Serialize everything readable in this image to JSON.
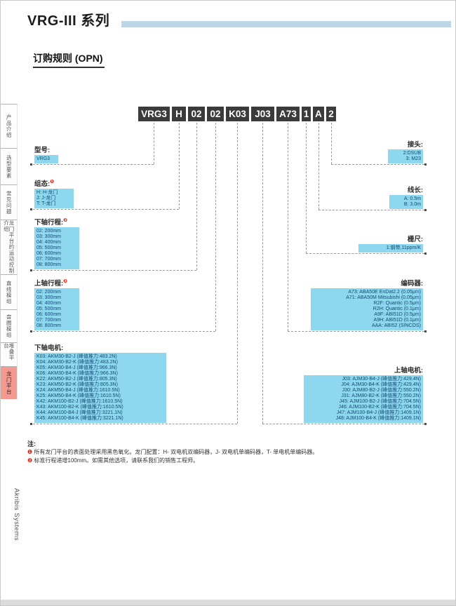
{
  "page": {
    "title": "VRG-III 系列",
    "subtitle": "订购规则 (OPN)",
    "brand_vertical": "Akribis Systems"
  },
  "sidebar": {
    "tabs": [
      {
        "label": "产品介绍",
        "active": false
      },
      {
        "label": "选型要素",
        "active": false
      },
      {
        "label": "常见问题",
        "active": false
      },
      {
        "label": "龙门平台的运动控制介绍",
        "active": false
      },
      {
        "label": "直线模组",
        "active": false
      },
      {
        "label": "音圈模组",
        "active": false
      },
      {
        "label": "堆叠平台",
        "active": false
      },
      {
        "label": "龙门平台",
        "active": true
      }
    ]
  },
  "part_number": {
    "segments": [
      "VRG3",
      "H",
      "02",
      "02",
      "K03",
      "J03",
      "A73",
      "1",
      "A",
      "2"
    ]
  },
  "groups_left": [
    {
      "label": "型号:",
      "marker": "",
      "options": [
        "VRG3"
      ]
    },
    {
      "label": "组态:",
      "marker": "❶",
      "options": [
        "H: H-龙门",
        "J: J-龙门",
        "T: T-龙门"
      ]
    },
    {
      "label": "下轴行程:",
      "marker": "❷",
      "options": [
        "02: 200mm",
        "03: 300mm",
        "04: 400mm",
        "05: 500mm",
        "06: 600mm",
        "07: 700mm",
        "08: 800mm"
      ]
    },
    {
      "label": "上轴行程:",
      "marker": "❷",
      "options": [
        "02: 200mm",
        "03: 300mm",
        "04: 400mm",
        "05: 500mm",
        "06: 600mm",
        "07: 700mm",
        "08: 800mm"
      ]
    },
    {
      "label": "下轴电机:",
      "marker": "",
      "options": [
        "K03: AKM30-B2-J (峰值推力:483.2N)",
        "K04: AKM30-B2-K (峰值推力:483.2N)",
        "K05: AKM30-B4-J (峰值推力:966.3N)",
        "K06: AKM30-B4-K (峰值推力:966.3N)",
        "K22: AKM50-B2-J (峰值推力:805.3N)",
        "K23: AKM50-B2-K (峰值推力:805.3N)",
        "K24: AKM50-B4-J (峰值推力:1610.5N)",
        "K25: AKM50-B4-K (峰值推力:1610.5N)",
        "K42: AKM100-B2-J (峰值推力:1610.5N)",
        "K43: AKM100-B2-K (峰值推力:1610.5N)",
        "K44: AKM100-B4-J (峰值推力:3221.1N)",
        "K45: AKM100-B4-K (峰值推力:3221.1N)"
      ]
    }
  ],
  "groups_right": [
    {
      "label": "接头:",
      "marker": "",
      "options": [
        "2:DSUB",
        "3: M23"
      ]
    },
    {
      "label": "线长:",
      "marker": "",
      "options": [
        "A: 0.5m",
        "B: 3.0m"
      ]
    },
    {
      "label": "栅尺:",
      "marker": "",
      "options": [
        "1:钢带,11ppm/K"
      ]
    },
    {
      "label": "编码器:",
      "marker": "",
      "options": [
        "A73: ABA50E EnDat2.2 (0.05μm)",
        "A71: ABA50M Mitsubishi (0.05μm)",
        "R2F: Quantic (0.5μm)",
        "R2H: Quantic (0.1μm)",
        "A9F: ABI51D (0.5μm)",
        "A9H: ABI51D (0.1μm)",
        "AAA: ABI52 (SINCOS)"
      ]
    },
    {
      "label": "上轴电机:",
      "marker": "",
      "options": [
        "J03: AJM30-B4-J (峰值推力:429.4N)",
        "J04: AJM30-B4-K (峰值推力:429.4N)",
        "J30: AJM80-B2-J (峰值推力:550.2N)",
        "J31: AJM80-B2-K (峰值推力:550.2N)",
        "J45: AJM100-B2-J (峰值推力:704.5N)",
        "J46: AJM100-B2-K (峰值推力:704.5N)",
        "J47: AJM100-B4-J (峰值推力:1409.1N)",
        "J48: AJM100-B4-K (峰值推力:1409.1N)"
      ]
    }
  ],
  "notes": {
    "title": "注:",
    "items": [
      {
        "marker": "❶",
        "text": "所有龙门平台的表面处理采用黑色氧化。龙门配置：H- 双电机双编码器，J- 双电机单编码器，T- 单电机单编码器。"
      },
      {
        "marker": "❷",
        "text": "标准行程递增100mm。如需其他选项，请联系我们的销售工程师。"
      }
    ]
  },
  "colors": {
    "accent_bar": "#bdd7e7",
    "part_number_box": "#3b3b3b",
    "option_box_bg": "#8dd7ef",
    "option_box_text": "#134a73",
    "active_tab": "#f29a90",
    "marker_red": "#e02817"
  }
}
